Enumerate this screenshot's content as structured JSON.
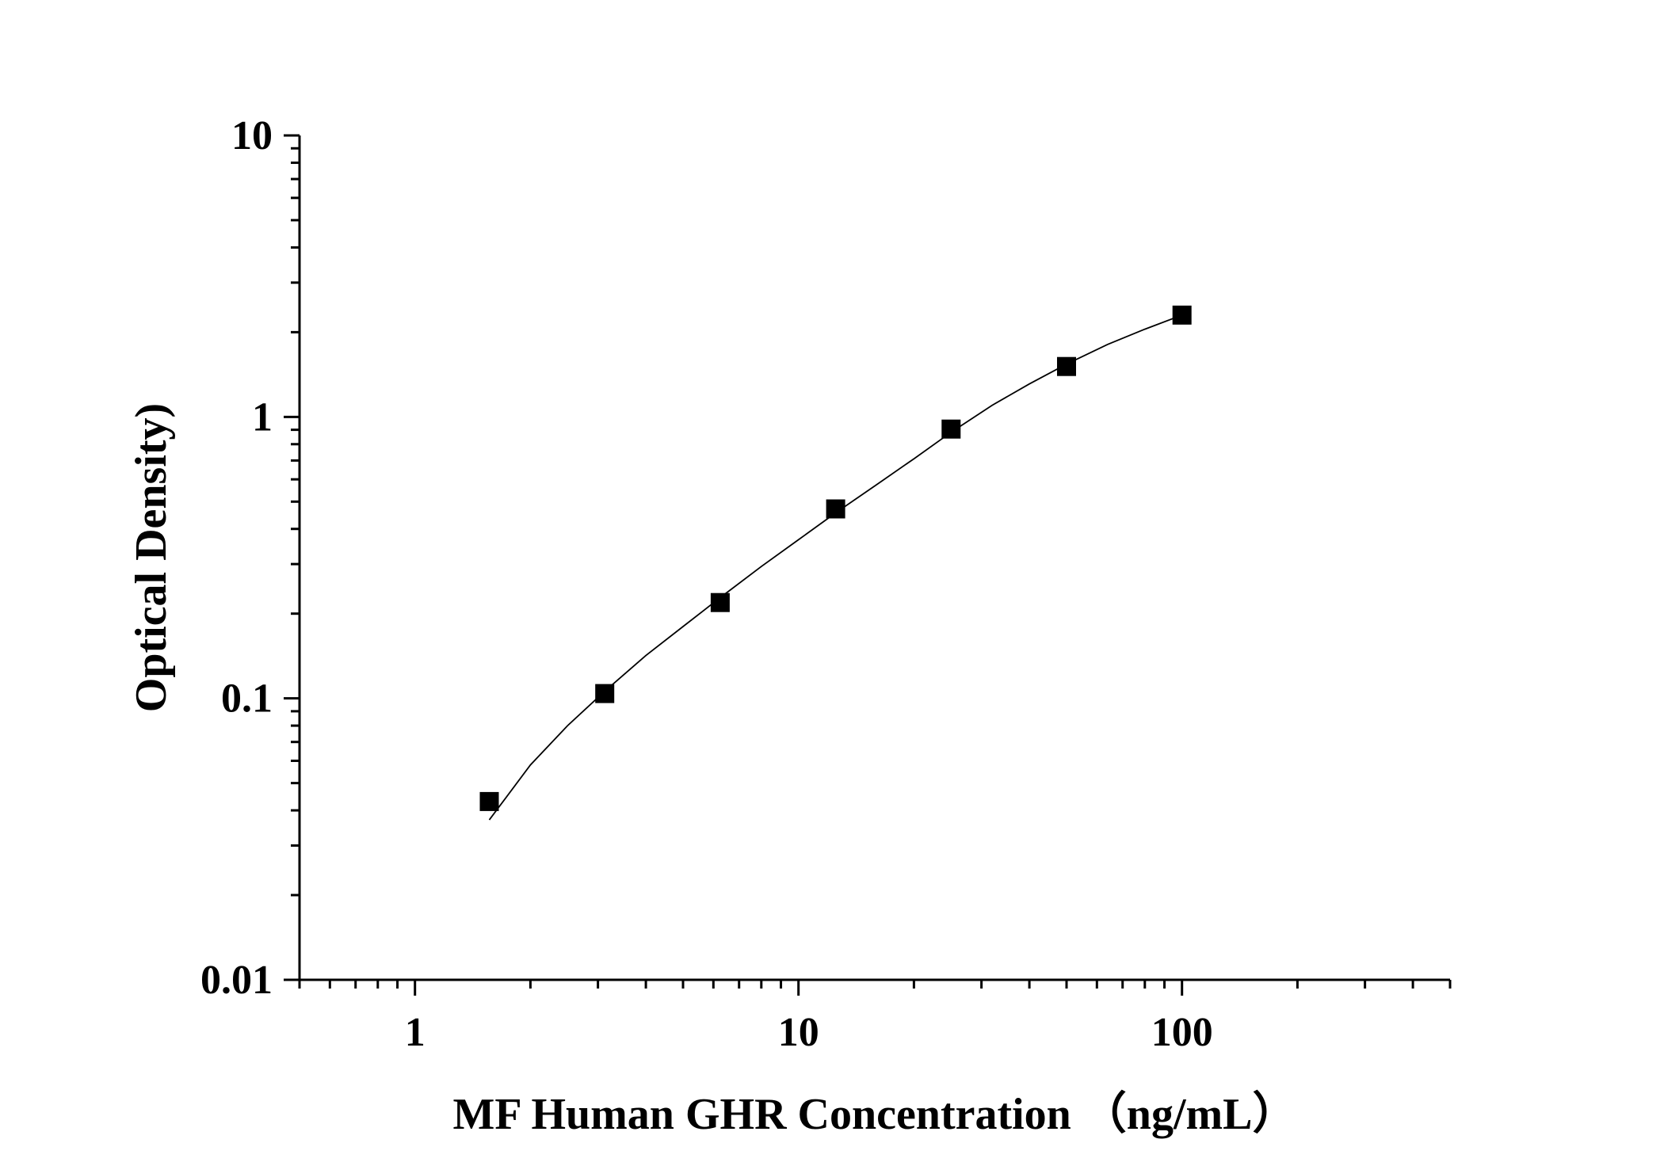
{
  "chart_data": {
    "type": "scatter",
    "title": "",
    "xlabel": "MF Human GHR Concentration （ng/mL）",
    "ylabel": "Optical Density)",
    "x_scale": "log",
    "y_scale": "log",
    "xlim": [
      0.5,
      500
    ],
    "ylim": [
      0.01,
      10
    ],
    "x_major_ticks": [
      1,
      10,
      100
    ],
    "x_tick_labels": [
      "1",
      "10",
      "100"
    ],
    "y_major_ticks": [
      0.01,
      0.1,
      1,
      10
    ],
    "y_tick_labels": [
      "0.01",
      "0.1",
      "1",
      "10"
    ],
    "grid": false,
    "legend": "none",
    "marker": "square",
    "color": "#000000",
    "points": [
      {
        "x": 1.5625,
        "y": 0.043
      },
      {
        "x": 3.125,
        "y": 0.104
      },
      {
        "x": 6.25,
        "y": 0.219
      },
      {
        "x": 12.5,
        "y": 0.471
      },
      {
        "x": 25,
        "y": 0.905
      },
      {
        "x": 50,
        "y": 1.51
      },
      {
        "x": 100,
        "y": 2.3
      }
    ],
    "fit_curve": {
      "x": [
        1.5625,
        2,
        2.5,
        3.125,
        4,
        5,
        6.25,
        8,
        10,
        12.5,
        16,
        20,
        25,
        32,
        40,
        50,
        64,
        80,
        100
      ],
      "y": [
        0.037,
        0.058,
        0.08,
        0.106,
        0.142,
        0.18,
        0.228,
        0.294,
        0.366,
        0.456,
        0.575,
        0.71,
        0.882,
        1.1,
        1.31,
        1.54,
        1.81,
        2.05,
        2.3
      ]
    }
  }
}
